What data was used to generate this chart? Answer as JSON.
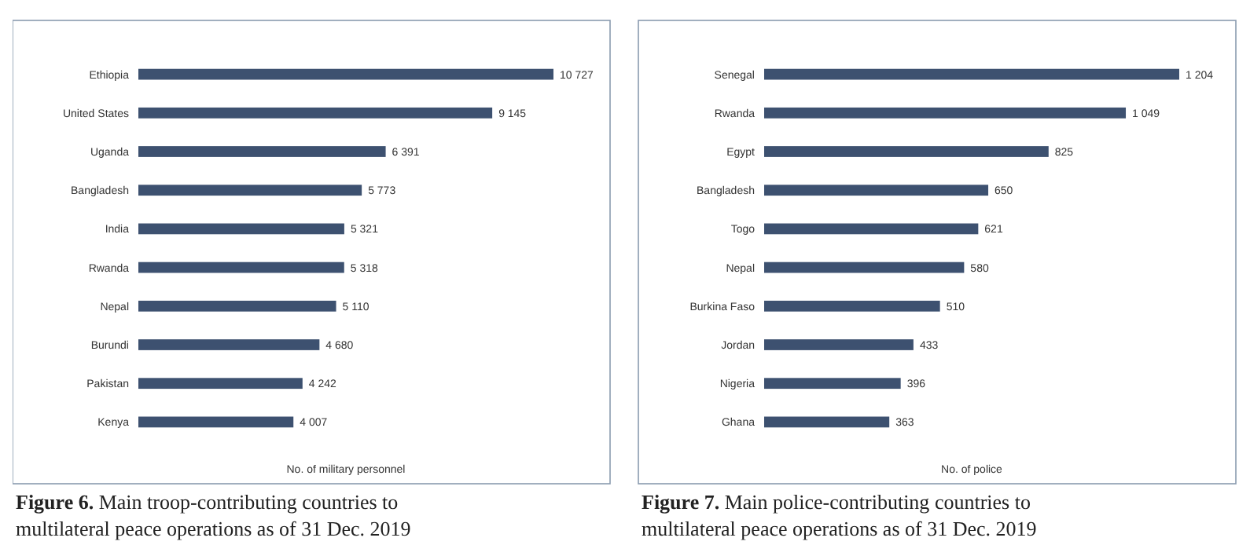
{
  "chart_data": [
    {
      "type": "bar",
      "orientation": "horizontal",
      "title": "Figure 6. Main troop-contributing countries to multilateral peace operations as of 31 Dec. 2019",
      "xlabel": "No. of military personnel",
      "categories": [
        "Ethiopia",
        "United States",
        "Uganda",
        "Bangladesh",
        "India",
        "Rwanda",
        "Nepal",
        "Burundi",
        "Pakistan",
        "Kenya"
      ],
      "values": [
        10727,
        9145,
        6391,
        5773,
        5321,
        5318,
        5110,
        4680,
        4242,
        4007
      ],
      "value_labels": [
        "10 727",
        "9 145",
        "6 391",
        "5 773",
        "5 321",
        "5 318",
        "5 110",
        "4 680",
        "4 242",
        "4 007"
      ],
      "color": "#3d5170"
    },
    {
      "type": "bar",
      "orientation": "horizontal",
      "title": "Figure 7. Main police-contributing countries to multilateral peace operations as of 31 Dec. 2019",
      "xlabel": "No. of police",
      "categories": [
        "Senegal",
        "Rwanda",
        "Egypt",
        "Bangladesh",
        "Togo",
        "Nepal",
        "Burkina Faso",
        "Jordan",
        "Nigeria",
        "Ghana"
      ],
      "values": [
        1204,
        1049,
        825,
        650,
        621,
        580,
        510,
        433,
        396,
        363
      ],
      "value_labels": [
        "1 204",
        "1 049",
        "825",
        "650",
        "621",
        "580",
        "510",
        "433",
        "396",
        "363"
      ],
      "color": "#3d5170"
    }
  ]
}
